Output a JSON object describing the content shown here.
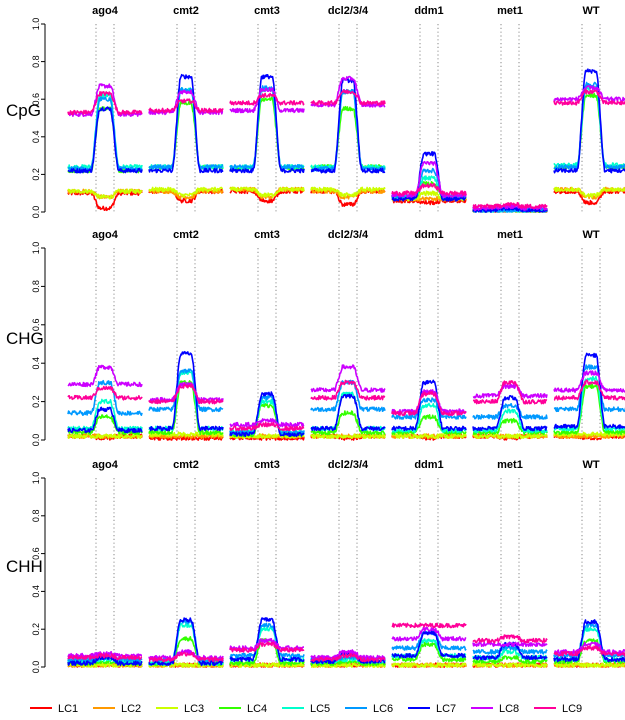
{
  "chart_data": {
    "type": "line",
    "title": "",
    "xlabel": "",
    "ylabel": "",
    "ylim": [
      0,
      1
    ],
    "y_ticks": [
      "0.0",
      "0.2",
      "0.4",
      "0.6",
      "0.8",
      "1.0"
    ],
    "mutants": [
      "ago4",
      "cmt2",
      "cmt3",
      "dcl2/3/4",
      "ddm1",
      "met1",
      "WT"
    ],
    "contexts": [
      "CpG",
      "CHG",
      "CHH"
    ],
    "grid": "vertical dotted lines at element boundaries",
    "x_profile": "flank-element-flank",
    "series": [
      {
        "name": "LC1",
        "color": "#ff0000"
      },
      {
        "name": "LC2",
        "color": "#ff9900"
      },
      {
        "name": "LC3",
        "color": "#ccff00"
      },
      {
        "name": "LC4",
        "color": "#33ff00"
      },
      {
        "name": "LC5",
        "color": "#00ffcc"
      },
      {
        "name": "LC6",
        "color": "#0099ff"
      },
      {
        "name": "LC7",
        "color": "#0000ff"
      },
      {
        "name": "LC8",
        "color": "#cc00ff"
      },
      {
        "name": "LC9",
        "color": "#ff0099"
      }
    ],
    "levels": {
      "CpG": {
        "ago4": {
          "flank": [
            0.1,
            0.11,
            0.11,
            0.22,
            0.24,
            0.23,
            0.22,
            0.52,
            0.53
          ],
          "center": [
            0.02,
            0.08,
            0.08,
            0.55,
            0.62,
            0.6,
            0.55,
            0.67,
            0.63
          ]
        },
        "cmt2": {
          "flank": [
            0.11,
            0.11,
            0.12,
            0.24,
            0.24,
            0.24,
            0.22,
            0.53,
            0.54
          ],
          "center": [
            0.06,
            0.08,
            0.09,
            0.58,
            0.65,
            0.65,
            0.72,
            0.64,
            0.59
          ]
        },
        "cmt3": {
          "flank": [
            0.11,
            0.12,
            0.12,
            0.23,
            0.24,
            0.24,
            0.22,
            0.54,
            0.58
          ],
          "center": [
            0.06,
            0.08,
            0.09,
            0.6,
            0.65,
            0.66,
            0.72,
            0.65,
            0.62
          ]
        },
        "dcl2/3/4": {
          "flank": [
            0.11,
            0.11,
            0.12,
            0.24,
            0.24,
            0.23,
            0.22,
            0.57,
            0.58
          ],
          "center": [
            0.04,
            0.08,
            0.09,
            0.55,
            0.64,
            0.64,
            0.7,
            0.71,
            0.64
          ]
        },
        "ddm1": {
          "flank": [
            0.06,
            0.07,
            0.07,
            0.08,
            0.08,
            0.08,
            0.07,
            0.09,
            0.1
          ],
          "center": [
            0.05,
            0.07,
            0.1,
            0.15,
            0.18,
            0.22,
            0.31,
            0.26,
            0.14
          ]
        },
        "met1": {
          "flank": [
            0.01,
            0.01,
            0.01,
            0.01,
            0.01,
            0.01,
            0.01,
            0.02,
            0.03
          ],
          "center": [
            0.01,
            0.01,
            0.01,
            0.01,
            0.01,
            0.01,
            0.02,
            0.03,
            0.04
          ]
        },
        "WT": {
          "flank": [
            0.11,
            0.12,
            0.12,
            0.24,
            0.25,
            0.24,
            0.22,
            0.6,
            0.58
          ],
          "center": [
            0.05,
            0.08,
            0.09,
            0.62,
            0.66,
            0.68,
            0.75,
            0.66,
            0.64
          ]
        }
      },
      "CHG": {
        "ago4": {
          "flank": [
            0.02,
            0.02,
            0.02,
            0.04,
            0.06,
            0.14,
            0.05,
            0.29,
            0.22
          ],
          "center": [
            0.01,
            0.02,
            0.02,
            0.12,
            0.2,
            0.3,
            0.16,
            0.38,
            0.27
          ]
        },
        "cmt2": {
          "flank": [
            0.01,
            0.02,
            0.03,
            0.04,
            0.06,
            0.16,
            0.06,
            0.21,
            0.2
          ],
          "center": [
            0.01,
            0.02,
            0.03,
            0.3,
            0.35,
            0.36,
            0.45,
            0.29,
            0.28
          ]
        },
        "cmt3": {
          "flank": [
            0.01,
            0.02,
            0.02,
            0.03,
            0.04,
            0.04,
            0.03,
            0.08,
            0.06
          ],
          "center": [
            0.01,
            0.02,
            0.02,
            0.18,
            0.2,
            0.22,
            0.24,
            0.1,
            0.08
          ]
        },
        "dcl2/3/4": {
          "flank": [
            0.02,
            0.02,
            0.02,
            0.04,
            0.06,
            0.16,
            0.06,
            0.26,
            0.22
          ],
          "center": [
            0.01,
            0.02,
            0.02,
            0.14,
            0.24,
            0.3,
            0.23,
            0.38,
            0.3
          ]
        },
        "ddm1": {
          "flank": [
            0.02,
            0.02,
            0.02,
            0.04,
            0.05,
            0.12,
            0.06,
            0.15,
            0.14
          ],
          "center": [
            0.01,
            0.02,
            0.02,
            0.12,
            0.18,
            0.21,
            0.3,
            0.25,
            0.24
          ]
        },
        "met1": {
          "flank": [
            0.02,
            0.02,
            0.02,
            0.04,
            0.05,
            0.12,
            0.06,
            0.23,
            0.2
          ],
          "center": [
            0.01,
            0.02,
            0.02,
            0.1,
            0.15,
            0.18,
            0.22,
            0.28,
            0.3
          ]
        },
        "WT": {
          "flank": [
            0.02,
            0.02,
            0.03,
            0.04,
            0.06,
            0.16,
            0.07,
            0.26,
            0.22
          ],
          "center": [
            0.01,
            0.02,
            0.03,
            0.28,
            0.32,
            0.38,
            0.44,
            0.35,
            0.3
          ]
        }
      },
      "CHH": {
        "ago4": {
          "flank": [
            0.01,
            0.01,
            0.01,
            0.02,
            0.03,
            0.04,
            0.02,
            0.06,
            0.05
          ],
          "center": [
            0.01,
            0.01,
            0.01,
            0.03,
            0.04,
            0.05,
            0.05,
            0.07,
            0.06
          ]
        },
        "cmt2": {
          "flank": [
            0.01,
            0.01,
            0.01,
            0.02,
            0.02,
            0.04,
            0.02,
            0.05,
            0.04
          ],
          "center": [
            0.01,
            0.01,
            0.01,
            0.15,
            0.22,
            0.24,
            0.25,
            0.08,
            0.07
          ]
        },
        "cmt3": {
          "flank": [
            0.01,
            0.01,
            0.01,
            0.02,
            0.04,
            0.06,
            0.04,
            0.1,
            0.09
          ],
          "center": [
            0.01,
            0.01,
            0.01,
            0.14,
            0.2,
            0.22,
            0.25,
            0.14,
            0.12
          ]
        },
        "dcl2/3/4": {
          "flank": [
            0.01,
            0.01,
            0.01,
            0.02,
            0.03,
            0.04,
            0.03,
            0.05,
            0.04
          ],
          "center": [
            0.01,
            0.01,
            0.01,
            0.03,
            0.04,
            0.05,
            0.07,
            0.08,
            0.06
          ]
        },
        "ddm1": {
          "flank": [
            0.01,
            0.01,
            0.01,
            0.04,
            0.06,
            0.1,
            0.06,
            0.15,
            0.22
          ],
          "center": [
            0.01,
            0.01,
            0.01,
            0.12,
            0.14,
            0.18,
            0.18,
            0.2,
            0.22
          ]
        },
        "met1": {
          "flank": [
            0.01,
            0.01,
            0.01,
            0.03,
            0.05,
            0.08,
            0.05,
            0.12,
            0.14
          ],
          "center": [
            0.01,
            0.01,
            0.01,
            0.05,
            0.08,
            0.1,
            0.12,
            0.12,
            0.16
          ]
        },
        "WT": {
          "flank": [
            0.01,
            0.01,
            0.01,
            0.03,
            0.04,
            0.06,
            0.04,
            0.08,
            0.07
          ],
          "center": [
            0.01,
            0.01,
            0.01,
            0.14,
            0.2,
            0.22,
            0.24,
            0.12,
            0.1
          ]
        }
      }
    }
  }
}
